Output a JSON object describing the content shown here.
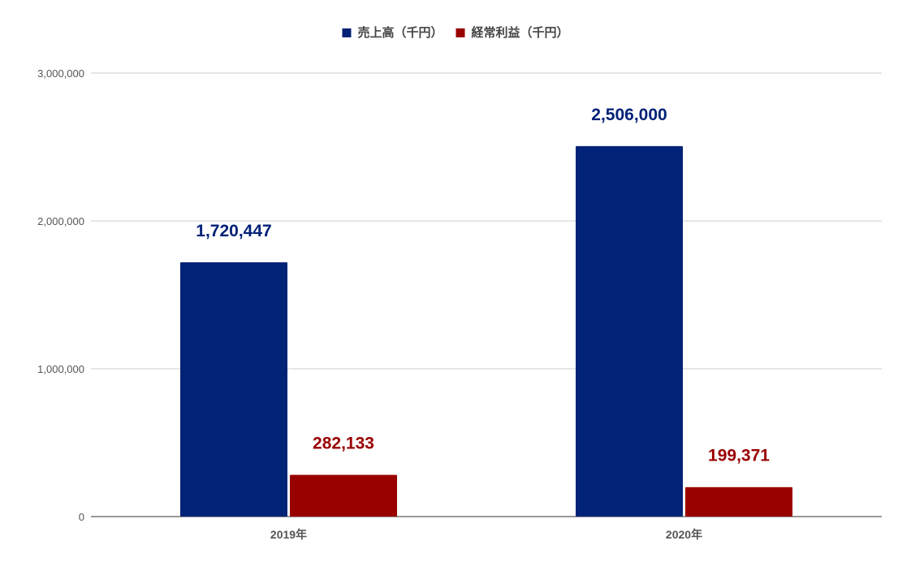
{
  "chart_data": {
    "type": "bar",
    "categories": [
      "2019年",
      "2020年"
    ],
    "series": [
      {
        "name": "売上高（千円）",
        "values": [
          1720447,
          2506000
        ],
        "color": "#002277",
        "labels": [
          "1,720,447",
          "2,506,000"
        ]
      },
      {
        "name": "経常利益（千円）",
        "values": [
          282133,
          199371
        ],
        "color": "#990000",
        "labels": [
          "282,133",
          "199,371"
        ]
      }
    ],
    "yticks": [
      {
        "value": 0,
        "label": "0"
      },
      {
        "value": 1000000,
        "label": "1,000,000"
      },
      {
        "value": 2000000,
        "label": "2,000,000"
      },
      {
        "value": 3000000,
        "label": "3,000,000"
      }
    ],
    "ylim": [
      0,
      3000000
    ],
    "grid": true,
    "legend_position": "top",
    "title": "",
    "xlabel": "",
    "ylabel": ""
  }
}
